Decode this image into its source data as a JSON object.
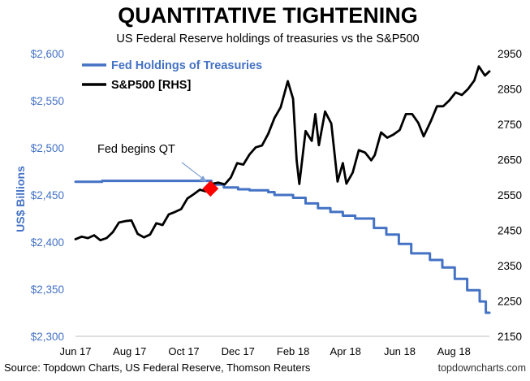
{
  "chart_data": {
    "type": "line",
    "title": "QUANTITATIVE TIGHTENING",
    "subtitle": "US Federal Reserve holdings of treasuries vs the S&P500",
    "ylabel_left": "US$ Billions",
    "ylabel_right": "",
    "source": "Source: Topdown Charts, US Federal Reserve, Thomson Reuters",
    "watermark": "topdowncharts.com",
    "x_ticks": [
      "Jun 17",
      "Aug 17",
      "Oct 17",
      "Dec 17",
      "Feb 18",
      "Apr 18",
      "Jun 18",
      "Aug 18"
    ],
    "x_tick_dates": [
      "2017-06-01",
      "2017-08-01",
      "2017-10-01",
      "2017-12-01",
      "2018-02-01",
      "2018-04-01",
      "2018-06-01",
      "2018-08-01"
    ],
    "xlim": [
      "2017-06-01",
      "2018-09-10"
    ],
    "ylim_left": [
      2300,
      2600
    ],
    "ylim_right": [
      2150,
      2950
    ],
    "yticks_left": [
      "$2,300",
      "$2,350",
      "$2,400",
      "$2,450",
      "$2,500",
      "$2,550",
      "$2,600"
    ],
    "yticks_left_values": [
      2300,
      2350,
      2400,
      2450,
      2500,
      2550,
      2600
    ],
    "yticks_right": [
      "2150",
      "2250",
      "2350",
      "2450",
      "2550",
      "2650",
      "2750",
      "2850",
      "2950"
    ],
    "yticks_right_values": [
      2150,
      2250,
      2350,
      2450,
      2550,
      2650,
      2750,
      2850,
      2950
    ],
    "legend_position": "top-left",
    "grid": false,
    "annotation": {
      "text": "Fed begins QT",
      "date": "2017-10-31",
      "sp500_value": 2568,
      "marker_color": "#ff0000"
    },
    "series": [
      {
        "name": "Fed Holdings of Treasuries",
        "axis": "left",
        "color": "#4472c4",
        "step": true,
        "points": [
          [
            "2017-06-01",
            2464
          ],
          [
            "2017-07-01",
            2465
          ],
          [
            "2017-08-01",
            2465
          ],
          [
            "2017-09-01",
            2465
          ],
          [
            "2017-10-01",
            2465
          ],
          [
            "2017-10-25",
            2465
          ],
          [
            "2017-11-01",
            2461
          ],
          [
            "2017-11-15",
            2458
          ],
          [
            "2017-12-01",
            2456
          ],
          [
            "2017-12-14",
            2455
          ],
          [
            "2018-01-04",
            2453
          ],
          [
            "2018-01-11",
            2450
          ],
          [
            "2018-02-01",
            2447
          ],
          [
            "2018-02-15",
            2441
          ],
          [
            "2018-03-01",
            2436
          ],
          [
            "2018-03-15",
            2432
          ],
          [
            "2018-03-29",
            2428
          ],
          [
            "2018-04-12",
            2425
          ],
          [
            "2018-05-03",
            2415
          ],
          [
            "2018-05-17",
            2408
          ],
          [
            "2018-05-31",
            2398
          ],
          [
            "2018-06-14",
            2388
          ],
          [
            "2018-07-05",
            2381
          ],
          [
            "2018-07-19",
            2373
          ],
          [
            "2018-08-02",
            2361
          ],
          [
            "2018-08-16",
            2349
          ],
          [
            "2018-08-30",
            2337
          ],
          [
            "2018-09-06",
            2325
          ],
          [
            "2018-09-10",
            2325
          ]
        ]
      },
      {
        "name": "S&P500 [RHS]",
        "axis": "right",
        "color": "#000000",
        "step": false,
        "points": [
          [
            "2017-06-01",
            2425
          ],
          [
            "2017-06-08",
            2432
          ],
          [
            "2017-06-15",
            2428
          ],
          [
            "2017-06-22",
            2436
          ],
          [
            "2017-06-29",
            2422
          ],
          [
            "2017-07-06",
            2428
          ],
          [
            "2017-07-13",
            2445
          ],
          [
            "2017-07-20",
            2472
          ],
          [
            "2017-07-27",
            2476
          ],
          [
            "2017-08-03",
            2478
          ],
          [
            "2017-08-10",
            2440
          ],
          [
            "2017-08-17",
            2430
          ],
          [
            "2017-08-24",
            2438
          ],
          [
            "2017-08-31",
            2470
          ],
          [
            "2017-09-07",
            2465
          ],
          [
            "2017-09-14",
            2495
          ],
          [
            "2017-09-21",
            2502
          ],
          [
            "2017-09-28",
            2510
          ],
          [
            "2017-10-05",
            2540
          ],
          [
            "2017-10-12",
            2552
          ],
          [
            "2017-10-19",
            2565
          ],
          [
            "2017-10-26",
            2560
          ],
          [
            "2017-11-02",
            2582
          ],
          [
            "2017-11-09",
            2585
          ],
          [
            "2017-11-16",
            2580
          ],
          [
            "2017-11-23",
            2600
          ],
          [
            "2017-11-30",
            2640
          ],
          [
            "2017-12-07",
            2636
          ],
          [
            "2017-12-14",
            2665
          ],
          [
            "2017-12-21",
            2685
          ],
          [
            "2017-12-28",
            2690
          ],
          [
            "2018-01-04",
            2723
          ],
          [
            "2018-01-11",
            2768
          ],
          [
            "2018-01-18",
            2798
          ],
          [
            "2018-01-26",
            2872
          ],
          [
            "2018-02-01",
            2822
          ],
          [
            "2018-02-05",
            2648
          ],
          [
            "2018-02-08",
            2581
          ],
          [
            "2018-02-15",
            2731
          ],
          [
            "2018-02-22",
            2703
          ],
          [
            "2018-02-26",
            2779
          ],
          [
            "2018-03-02",
            2691
          ],
          [
            "2018-03-09",
            2786
          ],
          [
            "2018-03-16",
            2752
          ],
          [
            "2018-03-23",
            2588
          ],
          [
            "2018-03-29",
            2640
          ],
          [
            "2018-04-02",
            2582
          ],
          [
            "2018-04-09",
            2613
          ],
          [
            "2018-04-16",
            2677
          ],
          [
            "2018-04-23",
            2670
          ],
          [
            "2018-04-30",
            2648
          ],
          [
            "2018-05-04",
            2663
          ],
          [
            "2018-05-11",
            2727
          ],
          [
            "2018-05-18",
            2712
          ],
          [
            "2018-05-25",
            2721
          ],
          [
            "2018-06-01",
            2734
          ],
          [
            "2018-06-08",
            2779
          ],
          [
            "2018-06-15",
            2779
          ],
          [
            "2018-06-22",
            2754
          ],
          [
            "2018-06-28",
            2716
          ],
          [
            "2018-07-06",
            2759
          ],
          [
            "2018-07-13",
            2801
          ],
          [
            "2018-07-20",
            2801
          ],
          [
            "2018-07-27",
            2818
          ],
          [
            "2018-08-03",
            2840
          ],
          [
            "2018-08-10",
            2833
          ],
          [
            "2018-08-17",
            2850
          ],
          [
            "2018-08-24",
            2874
          ],
          [
            "2018-08-29",
            2914
          ],
          [
            "2018-09-05",
            2888
          ],
          [
            "2018-09-10",
            2900
          ]
        ]
      }
    ]
  }
}
